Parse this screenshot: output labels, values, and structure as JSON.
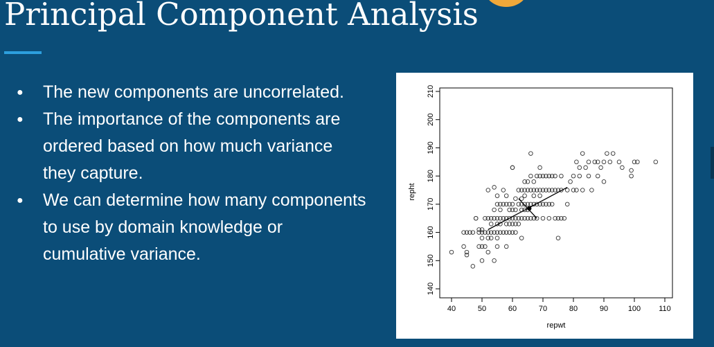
{
  "slide": {
    "title": "Principal Component Analysis",
    "accent_color": "#2d9fde",
    "background_color": "#0b4d78",
    "bullets": [
      "The new components are uncorrelated.",
      "The importance of the components are ordered based on how much variance they capture.",
      "We can determine how many components to use by domain knowledge or cumulative variance."
    ]
  },
  "chart_data": {
    "type": "scatter",
    "title": "",
    "xlabel": "repwt",
    "ylabel": "repht",
    "xlim": [
      40,
      110
    ],
    "ylim": [
      140,
      210
    ],
    "x_ticks": [
      40,
      50,
      60,
      70,
      80,
      90,
      100,
      110
    ],
    "y_ticks": [
      140,
      150,
      160,
      170,
      180,
      190,
      200,
      210
    ],
    "grid": false,
    "marker": "open-circle",
    "points": [
      [
        40,
        153
      ],
      [
        44,
        155
      ],
      [
        44,
        160
      ],
      [
        45,
        153
      ],
      [
        45,
        152
      ],
      [
        45,
        160
      ],
      [
        46,
        160
      ],
      [
        47,
        148
      ],
      [
        47,
        160
      ],
      [
        48,
        165
      ],
      [
        48,
        165
      ],
      [
        49,
        155
      ],
      [
        49,
        160
      ],
      [
        49,
        161
      ],
      [
        50,
        155
      ],
      [
        50,
        158
      ],
      [
        50,
        160
      ],
      [
        50,
        161
      ],
      [
        50,
        150
      ],
      [
        51,
        155
      ],
      [
        51,
        160
      ],
      [
        51,
        165
      ],
      [
        52,
        158
      ],
      [
        52,
        160
      ],
      [
        52,
        165
      ],
      [
        52,
        153
      ],
      [
        52,
        175
      ],
      [
        53,
        160
      ],
      [
        53,
        165
      ],
      [
        53,
        158
      ],
      [
        53,
        163
      ],
      [
        54,
        150
      ],
      [
        54,
        160
      ],
      [
        54,
        165
      ],
      [
        54,
        168
      ],
      [
        54,
        176
      ],
      [
        55,
        155
      ],
      [
        55,
        158
      ],
      [
        55,
        160
      ],
      [
        55,
        163
      ],
      [
        55,
        165
      ],
      [
        55,
        170
      ],
      [
        55,
        173
      ],
      [
        56,
        160
      ],
      [
        56,
        163
      ],
      [
        56,
        165
      ],
      [
        56,
        168
      ],
      [
        56,
        170
      ],
      [
        57,
        160
      ],
      [
        57,
        165
      ],
      [
        57,
        170
      ],
      [
        57,
        175
      ],
      [
        58,
        155
      ],
      [
        58,
        160
      ],
      [
        58,
        163
      ],
      [
        58,
        165
      ],
      [
        58,
        170
      ],
      [
        58,
        173
      ],
      [
        59,
        160
      ],
      [
        59,
        163
      ],
      [
        59,
        165
      ],
      [
        59,
        168
      ],
      [
        59,
        170
      ],
      [
        60,
        160
      ],
      [
        60,
        163
      ],
      [
        60,
        165
      ],
      [
        60,
        168
      ],
      [
        60,
        170
      ],
      [
        60,
        183
      ],
      [
        61,
        160
      ],
      [
        61,
        163
      ],
      [
        61,
        165
      ],
      [
        61,
        168
      ],
      [
        61,
        172
      ],
      [
        62,
        163
      ],
      [
        62,
        165
      ],
      [
        62,
        170
      ],
      [
        62,
        175
      ],
      [
        63,
        158
      ],
      [
        63,
        165
      ],
      [
        63,
        168
      ],
      [
        63,
        170
      ],
      [
        63,
        172
      ],
      [
        63,
        175
      ],
      [
        64,
        165
      ],
      [
        64,
        168
      ],
      [
        64,
        170
      ],
      [
        64,
        173
      ],
      [
        64,
        175
      ],
      [
        64,
        178
      ],
      [
        65,
        165
      ],
      [
        65,
        168
      ],
      [
        65,
        170
      ],
      [
        65,
        175
      ],
      [
        65,
        178
      ],
      [
        66,
        165
      ],
      [
        66,
        170
      ],
      [
        66,
        175
      ],
      [
        66,
        180
      ],
      [
        66,
        188
      ],
      [
        67,
        165
      ],
      [
        67,
        170
      ],
      [
        67,
        173
      ],
      [
        67,
        175
      ],
      [
        67,
        178
      ],
      [
        68,
        165
      ],
      [
        68,
        170
      ],
      [
        68,
        175
      ],
      [
        68,
        180
      ],
      [
        69,
        170
      ],
      [
        69,
        173
      ],
      [
        69,
        175
      ],
      [
        69,
        180
      ],
      [
        69,
        183
      ],
      [
        70,
        165
      ],
      [
        70,
        170
      ],
      [
        70,
        175
      ],
      [
        70,
        180
      ],
      [
        71,
        170
      ],
      [
        71,
        175
      ],
      [
        71,
        180
      ],
      [
        72,
        165
      ],
      [
        72,
        170
      ],
      [
        72,
        175
      ],
      [
        72,
        180
      ],
      [
        73,
        170
      ],
      [
        73,
        175
      ],
      [
        73,
        180
      ],
      [
        74,
        165
      ],
      [
        74,
        175
      ],
      [
        74,
        180
      ],
      [
        75,
        165
      ],
      [
        75,
        158
      ],
      [
        75,
        175
      ],
      [
        76,
        165
      ],
      [
        76,
        175
      ],
      [
        76,
        180
      ],
      [
        77,
        165
      ],
      [
        78,
        175
      ],
      [
        78,
        170
      ],
      [
        79,
        178
      ],
      [
        80,
        180
      ],
      [
        80,
        175
      ],
      [
        81,
        175
      ],
      [
        81,
        185
      ],
      [
        82,
        180
      ],
      [
        82,
        183
      ],
      [
        83,
        175
      ],
      [
        83,
        188
      ],
      [
        84,
        183
      ],
      [
        85,
        185
      ],
      [
        85,
        180
      ],
      [
        86,
        175
      ],
      [
        87,
        185
      ],
      [
        88,
        185
      ],
      [
        88,
        180
      ],
      [
        89,
        183
      ],
      [
        90,
        185
      ],
      [
        90,
        178
      ],
      [
        91,
        188
      ],
      [
        92,
        185
      ],
      [
        93,
        188
      ],
      [
        95,
        185
      ],
      [
        96,
        183
      ],
      [
        99,
        180
      ],
      [
        99,
        182
      ],
      [
        100,
        185
      ],
      [
        101,
        185
      ],
      [
        107,
        185
      ],
      [
        60,
        183
      ]
    ],
    "center": [
      65.5,
      168.5
    ],
    "principal_axis": [
      [
        52,
        161
      ],
      [
        78,
        176
      ]
    ],
    "minor_axis": [
      [
        62,
        172
      ],
      [
        68,
        165
      ]
    ]
  }
}
